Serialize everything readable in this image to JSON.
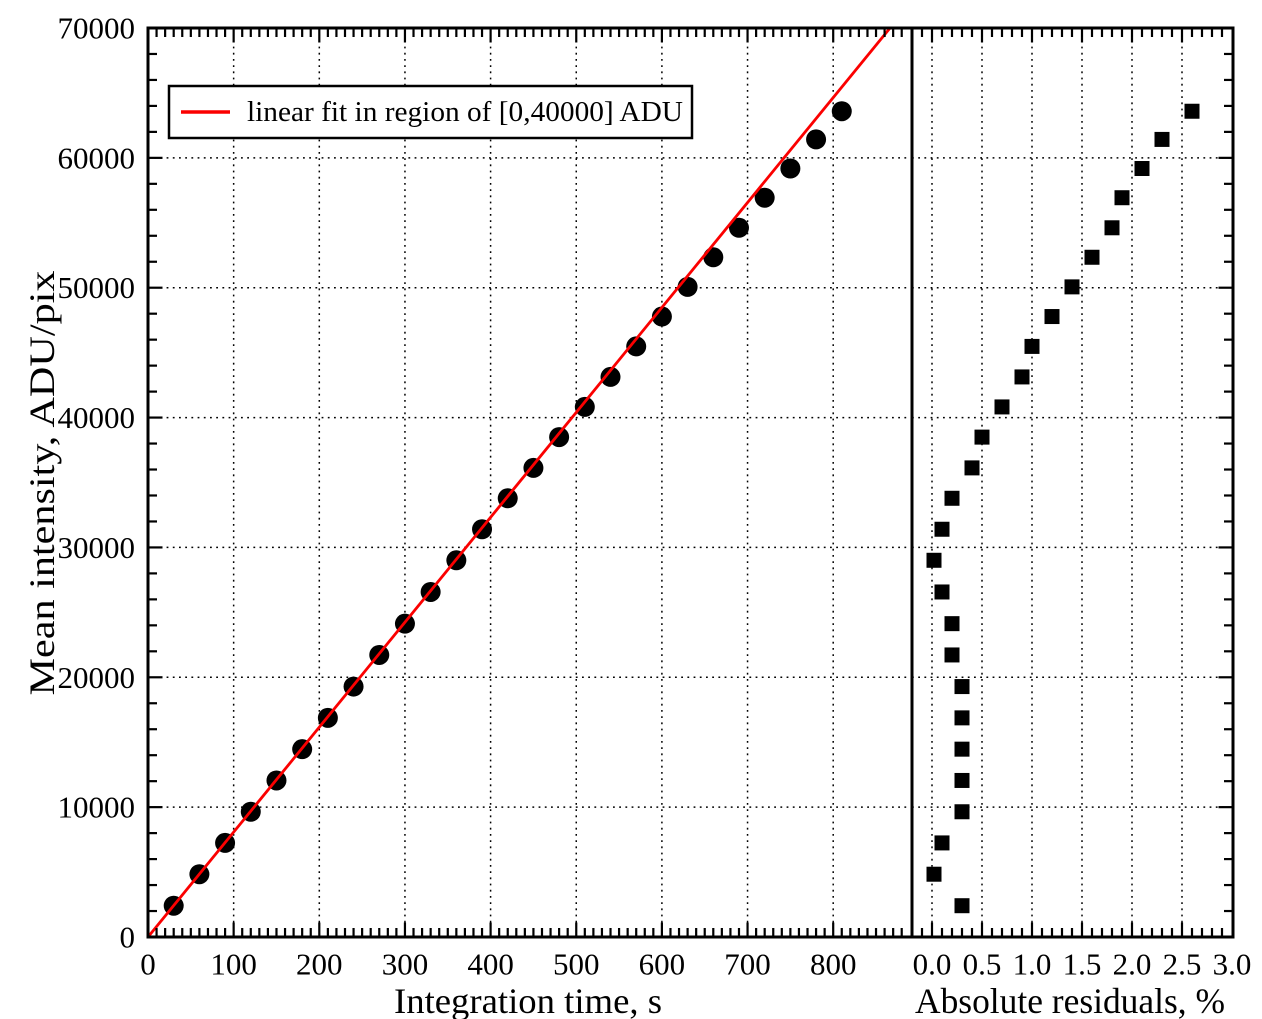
{
  "colors": {
    "fit_line": "#fb0000",
    "marker": "#000000",
    "axis": "#000000",
    "background": "#ffffff"
  },
  "chart_data": {
    "type": "scatter",
    "title": "",
    "grid": true,
    "points": {
      "integration_time_s": [
        30,
        60,
        90,
        120,
        150,
        180,
        210,
        240,
        270,
        300,
        330,
        360,
        390,
        420,
        450,
        480,
        510,
        540,
        570,
        600,
        630,
        660,
        690,
        720,
        750,
        780,
        810
      ],
      "mean_intensity_adu": [
        2410,
        4835,
        7245,
        9645,
        12055,
        14465,
        16875,
        19285,
        21720,
        24130,
        26570,
        29010,
        31400,
        33785,
        36125,
        38495,
        40820,
        43130,
        45480,
        47780,
        50065,
        52345,
        54615,
        56930,
        59180,
        61420,
        63590
      ],
      "abs_residual_pct": [
        0.3,
        0.02,
        0.1,
        0.3,
        0.3,
        0.3,
        0.3,
        0.3,
        0.2,
        0.2,
        0.1,
        0.02,
        0.1,
        0.2,
        0.4,
        0.5,
        0.7,
        0.9,
        1.0,
        1.2,
        1.4,
        1.6,
        1.8,
        1.9,
        2.1,
        2.3,
        2.6
      ]
    },
    "panels": [
      {
        "id": "intensity-vs-time",
        "xlabel": "Integration time, s",
        "ylabel": "Mean intensity, ADU/pix",
        "xlim": [
          0,
          892
        ],
        "ylim": [
          0,
          70000
        ],
        "x_major_ticks": [
          0,
          100,
          200,
          300,
          400,
          500,
          600,
          700,
          800
        ],
        "x_tick_labels": [
          "0",
          "100",
          "200",
          "300",
          "400",
          "500",
          "600",
          "700",
          "800"
        ],
        "x_minor_step": 10,
        "y_major_ticks": [
          0,
          10000,
          20000,
          30000,
          40000,
          50000,
          60000,
          70000
        ],
        "y_tick_labels": [
          "0",
          "10000",
          "20000",
          "30000",
          "40000",
          "50000",
          "60000",
          "70000"
        ],
        "y_minor_step": 2000,
        "show_y_labels": true,
        "series": [
          {
            "name": "measured mean intensity",
            "kind": "scatter",
            "marker": "circle",
            "color": "#000000",
            "x_key": "integration_time_s",
            "y_key": "mean_intensity_adu"
          },
          {
            "name": "linear fit in region of [0,40000] ADU",
            "kind": "line",
            "color": "#fb0000",
            "slope_adu_per_s": 80.8,
            "intercept_adu": 0
          }
        ],
        "legend": {
          "label": "linear fit in region of [0,40000] ADU",
          "position": "top-left",
          "line_color": "#fb0000"
        }
      },
      {
        "id": "residuals-vs-intensity",
        "xlabel": "Absolute residuals, %",
        "ylabel": "",
        "xlim": [
          -0.2,
          3.01
        ],
        "ylim": [
          0,
          70000
        ],
        "x_major_ticks": [
          0.0,
          0.5,
          1.0,
          1.5,
          2.0,
          2.5,
          3.0
        ],
        "x_tick_labels": [
          "0.0",
          "0.5",
          "1.0",
          "1.5",
          "2.0",
          "2.5",
          "3.0"
        ],
        "x_minor_step": 0.1,
        "y_major_ticks": [
          0,
          10000,
          20000,
          30000,
          40000,
          50000,
          60000,
          70000
        ],
        "y_tick_labels": [],
        "y_minor_step": 2000,
        "show_y_labels": false,
        "series": [
          {
            "name": "absolute residuals",
            "kind": "scatter",
            "marker": "square",
            "color": "#000000",
            "x_key": "abs_residual_pct",
            "y_key": "mean_intensity_adu"
          }
        ]
      }
    ]
  }
}
